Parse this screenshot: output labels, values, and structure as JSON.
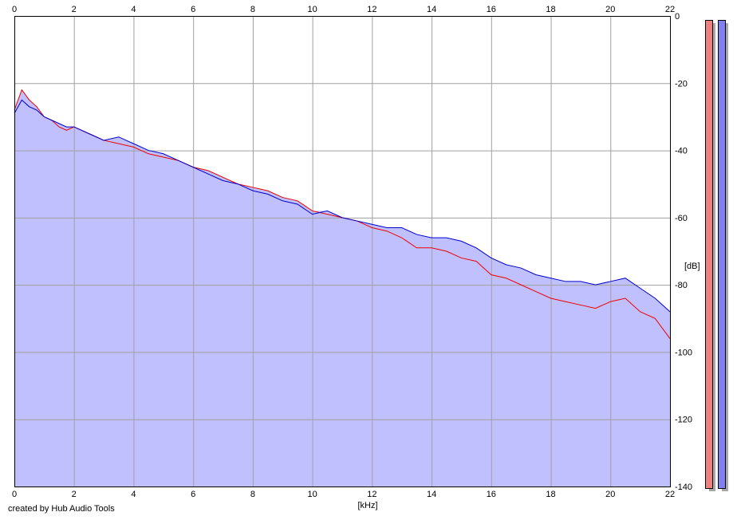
{
  "credit": "created by Hub Audio Tools",
  "chart_data": {
    "type": "area",
    "xlabel": "[kHz]",
    "ylabel": "[dB]",
    "xlim": [
      0,
      22
    ],
    "ylim": [
      -140,
      0
    ],
    "x_ticks": [
      0,
      2,
      4,
      6,
      8,
      10,
      12,
      14,
      16,
      18,
      20,
      22
    ],
    "y_ticks": [
      0,
      -20,
      -40,
      -60,
      -80,
      -100,
      -120,
      -140
    ],
    "grid": true,
    "colors": {
      "fill": "#c0c0ff",
      "left": "#ee0000",
      "right": "#0000cc",
      "grid": "#a0a0a0",
      "meter_left": "#f08080",
      "meter_right": "#8080f0"
    },
    "series": [
      {
        "color": "red",
        "x": [
          0,
          0.25,
          0.5,
          0.75,
          1,
          1.25,
          1.5,
          1.75,
          2,
          2.5,
          3,
          3.5,
          4,
          4.5,
          5,
          5.5,
          6,
          6.5,
          7,
          7.5,
          8,
          8.5,
          9,
          9.5,
          10,
          10.5,
          11,
          11.5,
          12,
          12.5,
          13,
          13.5,
          14,
          14.5,
          15,
          15.5,
          16,
          16.5,
          17,
          17.5,
          18,
          18.5,
          19,
          19.5,
          20,
          20.5,
          21,
          21.5,
          22
        ],
        "values": [
          -28,
          -22,
          -25,
          -27,
          -30,
          -31,
          -33,
          -34,
          -33,
          -35,
          -37,
          -38,
          -39,
          -41,
          -42,
          -43,
          -45,
          -46,
          -48,
          -50,
          -51,
          -52,
          -54,
          -55,
          -58,
          -59,
          -60,
          -61,
          -63,
          -64,
          -66,
          -69,
          -69,
          -70,
          -72,
          -73,
          -77,
          -78,
          -80,
          -82,
          -84,
          -85,
          -86,
          -87,
          -85,
          -84,
          -88,
          -90,
          -96
        ]
      },
      {
        "color": "blue",
        "x": [
          0,
          0.25,
          0.5,
          0.75,
          1,
          1.25,
          1.5,
          1.75,
          2,
          2.5,
          3,
          3.5,
          4,
          4.5,
          5,
          5.5,
          6,
          6.5,
          7,
          7.5,
          8,
          8.5,
          9,
          9.5,
          10,
          10.5,
          11,
          11.5,
          12,
          12.5,
          13,
          13.5,
          14,
          14.5,
          15,
          15.5,
          16,
          16.5,
          17,
          17.5,
          18,
          18.5,
          19,
          19.5,
          20,
          20.5,
          21,
          21.5,
          22
        ],
        "values": [
          -29,
          -25,
          -27,
          -28,
          -30,
          -31,
          -32,
          -33,
          -33,
          -35,
          -37,
          -36,
          -38,
          -40,
          -41,
          -43,
          -45,
          -47,
          -49,
          -50,
          -52,
          -53,
          -55,
          -56,
          -59,
          -58,
          -60,
          -61,
          -62,
          -63,
          -63,
          -65,
          -66,
          -66,
          -67,
          -69,
          -72,
          -74,
          -75,
          -77,
          -78,
          -79,
          -79,
          -80,
          -79,
          -78,
          -81,
          -84,
          -88
        ]
      }
    ]
  }
}
